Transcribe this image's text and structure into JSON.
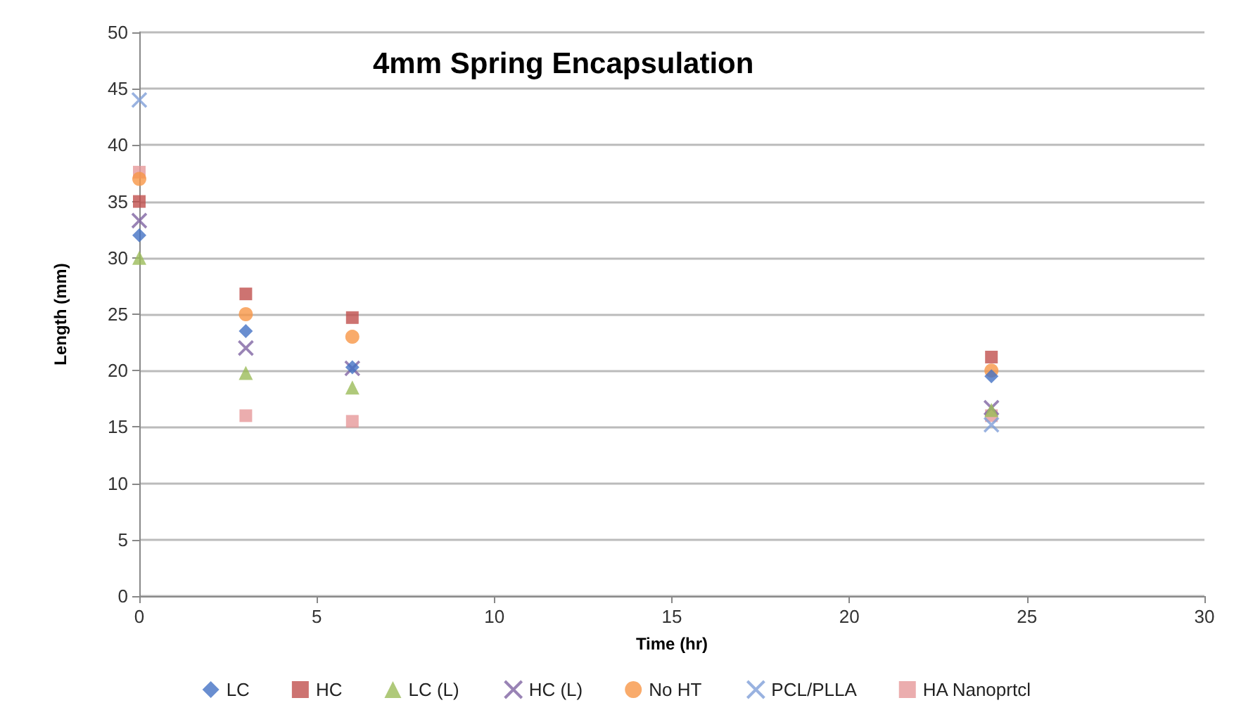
{
  "chart_data": {
    "type": "scatter",
    "title": "4mm Spring Encapsulation",
    "xlabel": "Time (hr)",
    "ylabel": "Length (mm)",
    "x": [
      0,
      3,
      6,
      24
    ],
    "series": [
      {
        "name": "LC",
        "color": "#4472c4",
        "marker": "diamond",
        "values": [
          32,
          23.5,
          20.3,
          19.5
        ]
      },
      {
        "name": "HC",
        "color": "#c0504d",
        "marker": "square",
        "values": [
          35,
          26.8,
          24.7,
          21.2
        ]
      },
      {
        "name": "LC (L)",
        "color": "#9bbb59",
        "marker": "triangle",
        "values": [
          30,
          19.8,
          18.5,
          16.5
        ]
      },
      {
        "name": "HC (L)",
        "color": "#8064a2",
        "marker": "cross",
        "values": [
          33.3,
          22,
          20.2,
          16.7
        ]
      },
      {
        "name": "No HT",
        "color": "#f79646",
        "marker": "circle",
        "values": [
          37,
          25,
          23,
          20
        ]
      },
      {
        "name": "PCL/PLLA",
        "color": "#7f9fd8",
        "marker": "cross",
        "values": [
          44,
          null,
          null,
          15.2
        ]
      },
      {
        "name": "HA Nanoprtcl",
        "color": "#e6999a",
        "marker": "square",
        "values": [
          37.6,
          16,
          15.5,
          16
        ]
      }
    ],
    "xlim": [
      0,
      30
    ],
    "xticks": [
      0,
      5,
      10,
      15,
      20,
      25,
      30
    ],
    "ylim": [
      0,
      50
    ],
    "yticks": [
      0,
      5,
      10,
      15,
      20,
      25,
      30,
      35,
      40,
      45,
      50
    ],
    "grid": "y",
    "legend": "bottom"
  }
}
